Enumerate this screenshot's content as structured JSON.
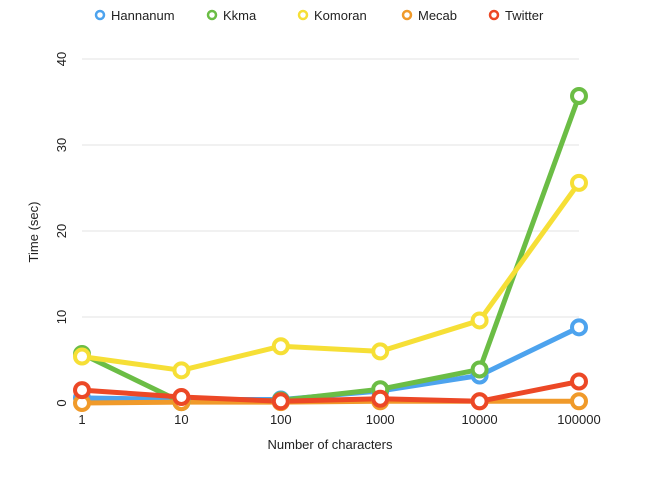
{
  "chart_data": {
    "type": "line",
    "title": "",
    "xlabel": "Number of characters",
    "ylabel": "Time (sec)",
    "categories": [
      "1",
      "10",
      "100",
      "1000",
      "10000",
      "100000"
    ],
    "ylim": [
      0,
      40
    ],
    "yticks": [
      0,
      10,
      20,
      30,
      40
    ],
    "grid": true,
    "legend_position": "top",
    "series": [
      {
        "name": "Hannanum",
        "color": "#4da3ee",
        "values": [
          0.6,
          0.4,
          0.4,
          1.4,
          3.2,
          8.8
        ]
      },
      {
        "name": "Kkma",
        "color": "#6bbd45",
        "values": [
          5.7,
          0.1,
          0.3,
          1.6,
          3.9,
          35.7
        ]
      },
      {
        "name": "Komoran",
        "color": "#f6df36",
        "values": [
          5.4,
          3.8,
          6.6,
          6.0,
          9.6,
          25.6
        ]
      },
      {
        "name": "Mecab",
        "color": "#f09a2a",
        "values": [
          0.0,
          0.1,
          0.1,
          0.2,
          0.2,
          0.2
        ]
      },
      {
        "name": "Twitter",
        "color": "#ec4826",
        "values": [
          1.5,
          0.7,
          0.2,
          0.5,
          0.2,
          2.5
        ]
      }
    ]
  }
}
